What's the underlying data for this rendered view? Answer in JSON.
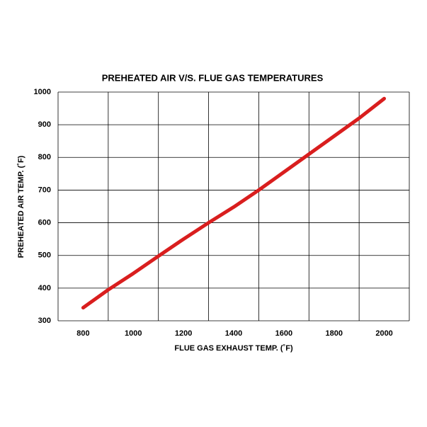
{
  "chart_data": {
    "type": "line",
    "title": "PREHEATED AIR V/S. FLUE GAS TEMPERATURES",
    "x_label": "FLUE GAS EXHAUST TEMP. (˚F)",
    "y_label": "PREHEATED  AIR TEMP. (˚F)",
    "x": [
      800,
      900,
      1000,
      1100,
      1200,
      1300,
      1400,
      1500,
      1600,
      1700,
      1800,
      1900,
      2000
    ],
    "series": [
      {
        "name": "Preheated air",
        "color": "#d91e1e",
        "values": [
          340,
          395,
          445,
          498,
          550,
          600,
          648,
          700,
          755,
          810,
          865,
          920,
          980
        ]
      }
    ],
    "xlim": [
      700,
      2100
    ],
    "xticks": [
      800,
      1000,
      1200,
      1400,
      1600,
      1800,
      2000
    ],
    "ylim": [
      300,
      1000
    ],
    "yticks": [
      300,
      400,
      500,
      600,
      700,
      800,
      900,
      1000
    ],
    "grid": true
  }
}
